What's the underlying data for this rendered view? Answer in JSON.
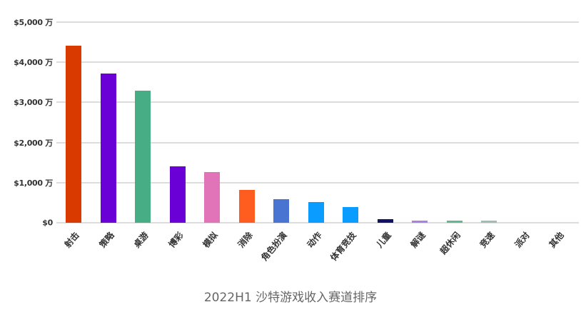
{
  "caption": "2022H1 沙特游戏收入赛道排序",
  "chart_data": {
    "type": "bar",
    "title": "2022H1 沙特游戏收入赛道排序",
    "xlabel": "",
    "ylabel": "",
    "unit": "万美元",
    "ylim": [
      0,
      5000
    ],
    "grid": true,
    "legend": "none",
    "yticks": [
      "$0",
      "$1,000 万",
      "$2,000 万",
      "$3,000 万",
      "$4,000 万",
      "$5,000 万"
    ],
    "categories": [
      "射击",
      "策略",
      "桌游",
      "博彩",
      "模拟",
      "消除",
      "角色扮演",
      "动作",
      "体育竞技",
      "儿童",
      "解谜",
      "超休闲",
      "竞速",
      "派对",
      "其他"
    ],
    "values": [
      4410,
      3720,
      3300,
      1410,
      1270,
      820,
      590,
      510,
      390,
      90,
      40,
      40,
      30,
      0,
      0
    ],
    "colors": [
      "#d93a00",
      "#6b00d6",
      "#46ad85",
      "#6b00d6",
      "#e174b9",
      "#ff5c1f",
      "#4a74d1",
      "#0a9dff",
      "#0a9dff",
      "#111166",
      "#b07de8",
      "#5fb890",
      "#9bbfb0",
      "#cccccc",
      "#cccccc"
    ]
  }
}
